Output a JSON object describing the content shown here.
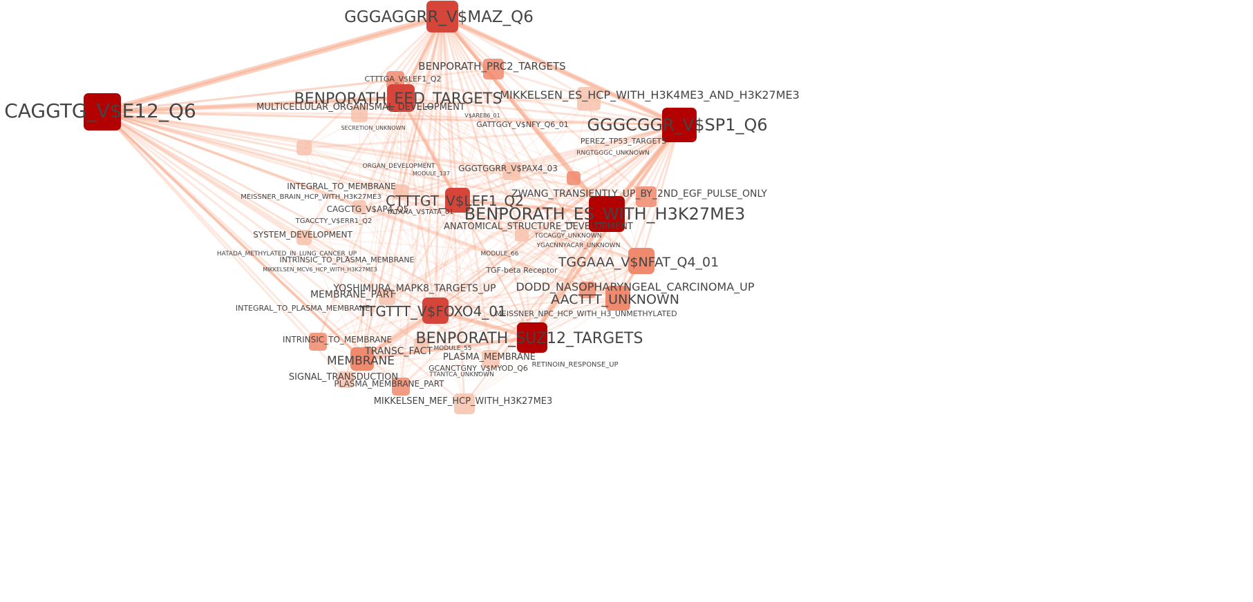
{
  "graph": {
    "colors": {
      "edge": "#f7a98a",
      "node_dark": "#b30000",
      "node_mid": "#d6453a",
      "node_light": "#f08a6e",
      "node_pale": "#f7c2ad",
      "label_major": "#222222",
      "label_minor": "#555555",
      "label_faint": "#999999"
    },
    "hubs": [
      {
        "id": "h1",
        "label": "CAGGTG_V$E12_Q6",
        "tone": "dark"
      },
      {
        "id": "h2",
        "label": "GGGAGGRR_V$MAZ_Q6",
        "tone": "mid"
      },
      {
        "id": "h3",
        "label": "GGGCGGR_V$SP1_Q6",
        "tone": "dark"
      },
      {
        "id": "h4",
        "label": "BENPORATH_ES_WITH_H3K27ME3",
        "tone": "dark"
      },
      {
        "id": "h5",
        "label": "BENPORATH_SUZ12_TARGETS",
        "tone": "dark"
      },
      {
        "id": "h6",
        "label": "BENPORATH_EED_TARGETS",
        "tone": "mid"
      },
      {
        "id": "h7",
        "label": "CTTTGT_V$LEF1_Q2",
        "tone": "mid"
      },
      {
        "id": "h8",
        "label": "TTGTTT_V$FOXO4_01",
        "tone": "mid"
      },
      {
        "id": "h9",
        "label": "AACTTT_UNKNOWN",
        "tone": "light"
      },
      {
        "id": "h10",
        "label": "TGGAAA_V$NFAT_Q4_01",
        "tone": "light"
      },
      {
        "id": "h11",
        "label": "MEMBRANE",
        "tone": "light"
      }
    ],
    "labels_mid": [
      "BENPORATH_PRC2_TARGETS",
      "MIKKELSEN_ES_HCP_WITH_H3K4ME3_AND_H3K27ME3",
      "MULTICELLULAR_ORGANISMAL_DEVELOPMENT",
      "CTTTGA_V$LEF1_Q2",
      "GATTGGY_V$NFY_Q6_01",
      "PEREZ_TP53_TARGETS",
      "GGGTGGRR_V$PAX4_03",
      "CAGCTG_V$AP4_Q5",
      "INTEGRAL_TO_MEMBRANE",
      "ZWANG_TRANSIENTLY_UP_BY_2ND_EGF_PULSE_ONLY",
      "ANATOMICAL_STRUCTURE_DEVELOPMENT",
      "SYSTEM_DEVELOPMENT",
      "YOSHIMURA_MAPK8_TARGETS_UP",
      "DODD_NASOPHARYNGEAL_CARCINOMA_UP",
      "MEMBRANE_PART",
      "INTRINSIC_TO_MEMBRANE",
      "TRANSC_FACT",
      "PLASMA_MEMBRANE",
      "SIGNAL_TRANSDUCTION",
      "PLASMA_MEMBRANE_PART",
      "MIKKELSEN_MEF_HCP_WITH_H3K27ME3",
      "INTEGRAL_TO_PLASMA_MEMBRANE",
      "INTRINSIC_TO_PLASMA_MEMBRANE",
      "TGF-beta Receptor",
      "MEISSNER_NPC_HCP_WITH_H3_UNMETHYLATED",
      "GCANCTGNY_V$MYOD_Q6",
      "TGACCTY_V$ERR1_Q2",
      "MEISSNER_BRAIN_HCP_WITH_H3K27ME3",
      "ORGAN_DEVELOPMENT",
      "YATAAA_V$TATA_01",
      "HATADA_METHYLATED_IN_LUNG_CANCER_UP",
      "MIKKELSEN_MCV6_HCP_WITH_H3K27ME3",
      "V$AREB6_01",
      "TGCAGGY_UNKNOWN",
      "RNGTGGGC_UNKNOWN",
      "YGACNNYACAR_UNKNOWN",
      "TTANTCA_UNKNOWN",
      "RETINOIN_RESPONSE_UP",
      "MODULE_66",
      "MODULE_55",
      "MODULE_137",
      "SECRETION_UNKNOWN"
    ]
  }
}
